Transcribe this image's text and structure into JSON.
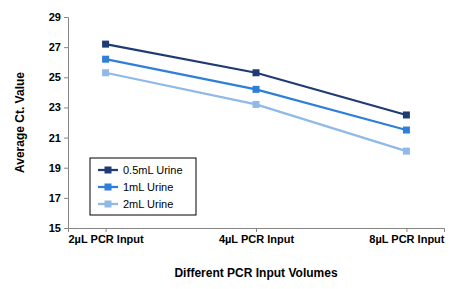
{
  "chart_data": {
    "type": "line",
    "x_label": "Different PCR Input Volumes",
    "y_label": "Average Ct. Value",
    "categories": [
      "2µL PCR Input",
      "4µL PCR Input",
      "8µL PCR Input"
    ],
    "series": [
      {
        "name": "0.5mL Urine",
        "color": "#1f3b73",
        "marker": "square",
        "values": [
          27.2,
          25.3,
          22.5
        ]
      },
      {
        "name": "1mL Urine",
        "color": "#2f7fd8",
        "marker": "square",
        "values": [
          26.2,
          24.2,
          21.5
        ]
      },
      {
        "name": "2mL Urine",
        "color": "#8fb9e6",
        "marker": "square",
        "values": [
          25.3,
          23.2,
          20.1
        ]
      }
    ],
    "ylim": [
      15,
      29
    ],
    "yticks": [
      15,
      17,
      19,
      21,
      23,
      25,
      27,
      29
    ],
    "grid": false,
    "legend": "lower left"
  }
}
